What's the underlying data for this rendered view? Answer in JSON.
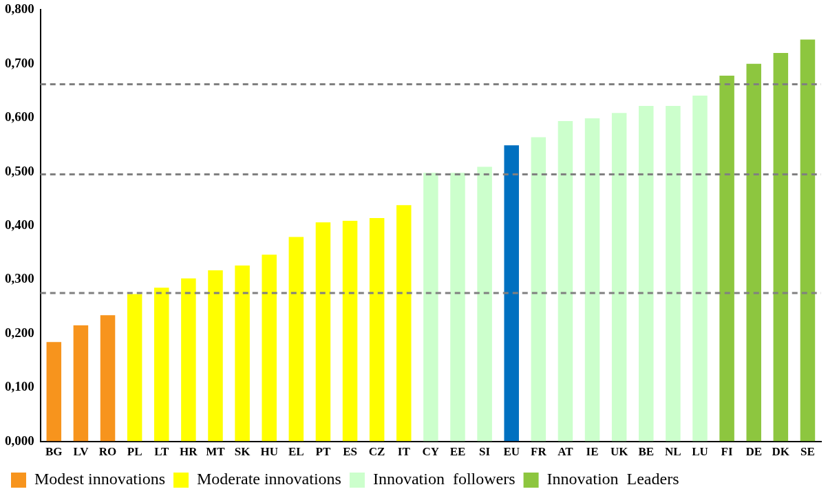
{
  "chart_data": {
    "type": "bar",
    "categories": [
      "BG",
      "LV",
      "RO",
      "PL",
      "LT",
      "HR",
      "MT",
      "SK",
      "HU",
      "EL",
      "PT",
      "ES",
      "CZ",
      "IT",
      "CY",
      "EE",
      "SI",
      "EU",
      "FR",
      "AT",
      "IE",
      "UK",
      "BE",
      "NL",
      "LU",
      "FI",
      "DE",
      "DK",
      "SE"
    ],
    "series": [
      {
        "name": "Modest innovations",
        "color": "#f7941d",
        "values": [
          0.184,
          0.215,
          0.234,
          null,
          null,
          null,
          null,
          null,
          null,
          null,
          null,
          null,
          null,
          null,
          null,
          null,
          null,
          null,
          null,
          null,
          null,
          null,
          null,
          null,
          null,
          null,
          null,
          null,
          null
        ]
      },
      {
        "name": "Moderate innovations",
        "color": "#ffff00",
        "values": [
          null,
          null,
          null,
          0.273,
          0.285,
          0.302,
          0.317,
          0.326,
          0.346,
          0.379,
          0.406,
          0.409,
          0.414,
          0.438,
          null,
          null,
          null,
          null,
          null,
          null,
          null,
          null,
          null,
          null,
          null,
          null,
          null,
          null,
          null
        ]
      },
      {
        "name": "Innovation  followers",
        "color": "#ccffcc",
        "values": [
          null,
          null,
          null,
          null,
          null,
          null,
          null,
          null,
          null,
          null,
          null,
          null,
          null,
          null,
          0.498,
          0.498,
          0.509,
          null,
          0.564,
          0.594,
          0.599,
          0.609,
          0.622,
          0.622,
          0.641,
          null,
          null,
          null,
          null
        ]
      },
      {
        "color": "#0070c0",
        "values": [
          null,
          null,
          null,
          null,
          null,
          null,
          null,
          null,
          null,
          null,
          null,
          null,
          null,
          null,
          null,
          null,
          null,
          0.549,
          null,
          null,
          null,
          null,
          null,
          null,
          null,
          null,
          null,
          null,
          null
        ]
      },
      {
        "name": "Innovation  Leaders",
        "color": "#8dc63f",
        "values": [
          null,
          null,
          null,
          null,
          null,
          null,
          null,
          null,
          null,
          null,
          null,
          null,
          null,
          null,
          null,
          null,
          null,
          null,
          null,
          null,
          null,
          null,
          null,
          null,
          null,
          0.678,
          0.7,
          0.72,
          0.745
        ]
      }
    ],
    "ylim": [
      0,
      0.8
    ],
    "yticks": [
      {
        "value": 0,
        "label": "0,000"
      },
      {
        "value": 0.1,
        "label": "0,100"
      },
      {
        "value": 0.2,
        "label": "0,200"
      },
      {
        "value": 0.3,
        "label": "0,300"
      },
      {
        "value": 0.4,
        "label": "0,400"
      },
      {
        "value": 0.5,
        "label": "0,500"
      },
      {
        "value": 0.6,
        "label": "0,600"
      },
      {
        "value": 0.7,
        "label": "0,700"
      },
      {
        "value": 0.8,
        "label": "0,800"
      }
    ],
    "ref_lines": [
      {
        "axis": "y",
        "value": 0.662,
        "color": "#808080",
        "line_style": "dashed"
      },
      {
        "axis": "y",
        "value": 0.495,
        "color": "#808080",
        "line_style": "dashed"
      },
      {
        "axis": "y",
        "value": 0.275,
        "color": "#808080",
        "line_style": "dashed"
      }
    ],
    "grid": false,
    "legend": "bottom"
  }
}
